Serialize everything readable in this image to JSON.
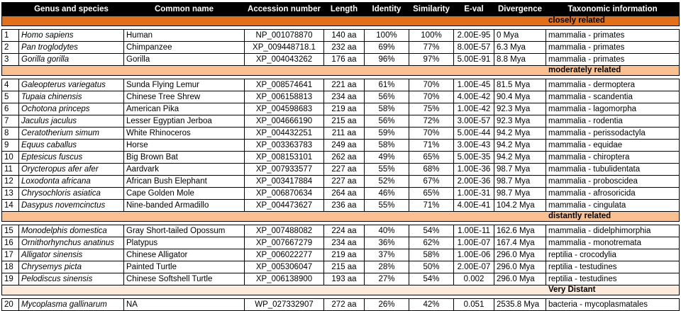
{
  "colors": {
    "header_bg": "#000000",
    "header_text": "#FFFFFF",
    "band_closely_related": "#E2701A",
    "band_moderately_related": "#FAC090",
    "band_distantly_related": "#FAC090",
    "band_very_distant": "#FDEADA",
    "row_bg": "#FFFFFF",
    "border": "#000000"
  },
  "table": {
    "columns": [
      {
        "key": "num",
        "label": ""
      },
      {
        "key": "genus",
        "label": "Genus and species"
      },
      {
        "key": "common",
        "label": "Common name"
      },
      {
        "key": "accession",
        "label": "Accession number"
      },
      {
        "key": "length",
        "label": "Length"
      },
      {
        "key": "identity",
        "label": "Identity"
      },
      {
        "key": "similarity",
        "label": "Similarity"
      },
      {
        "key": "eval",
        "label": "E-val"
      },
      {
        "key": "divergence",
        "label": "Divergence"
      },
      {
        "key": "taxonomy",
        "label": "Taxonomic information"
      }
    ],
    "sections": [
      {
        "label": "closely related",
        "band_color": "#E2701A",
        "rows": [
          {
            "num": "1",
            "genus": "Homo sapiens",
            "common": "Human",
            "accession": "NP_001078870",
            "length": "140 aa",
            "identity": "100%",
            "similarity": "100%",
            "eval": "2.00E-95",
            "divergence": "0 Mya",
            "taxonomy": "mammalia - primates"
          },
          {
            "num": "2",
            "genus": "Pan troglodytes",
            "common": "Chimpanzee",
            "accession": "XP_009448718.1",
            "length": "232 aa",
            "identity": "69%",
            "similarity": "77%",
            "eval": "8.00E-57",
            "divergence": "6.3 Mya",
            "taxonomy": "mammalia - primates"
          },
          {
            "num": "3",
            "genus": "Gorilla gorilla",
            "common": "Gorilla",
            "accession": "XP_004043262",
            "length": "176 aa",
            "identity": "96%",
            "similarity": "97%",
            "eval": "5.00E-91",
            "divergence": "8.8 Mya",
            "taxonomy": "mammalia - primates"
          }
        ]
      },
      {
        "label": "moderately related",
        "band_color": "#FAC090",
        "rows": [
          {
            "num": "4",
            "genus": "Galeopterus variegatus",
            "common": "Sunda Flying Lemur",
            "accession": "XP_008574641",
            "length": "221 aa",
            "identity": "61%",
            "similarity": "70%",
            "eval": "1.00E-45",
            "divergence": "81.5 Mya",
            "taxonomy": "mammalia - dermoptera"
          },
          {
            "num": "5",
            "genus": "Tupaia chinensis",
            "common": "Chinese Tree Shrew",
            "accession": "XP_006158813",
            "length": "234 aa",
            "identity": "56%",
            "similarity": "70%",
            "eval": "4.00E-42",
            "divergence": "90.4 Mya",
            "taxonomy": "mammalia - scandentia"
          },
          {
            "num": "6",
            "genus": "Ochotona princeps",
            "common": "American Pika",
            "accession": "XP_004598683",
            "length": "219 aa",
            "identity": "58%",
            "similarity": "75%",
            "eval": "1.00E-42",
            "divergence": "92.3 Mya",
            "taxonomy": "mammalia - lagomorpha"
          },
          {
            "num": "7",
            "genus": "Jaculus jaculus",
            "common": "Lesser Egyptian Jerboa",
            "accession": "XP_004666190",
            "length": "215 aa",
            "identity": "56%",
            "similarity": "72%",
            "eval": "3.00E-57",
            "divergence": "92.3 Mya",
            "taxonomy": "mammalia - rodentia"
          },
          {
            "num": "8",
            "genus": "Ceratotherium simum",
            "common": "White Rhinoceros",
            "accession": "XP_004432251",
            "length": "211 aa",
            "identity": "59%",
            "similarity": "70%",
            "eval": "5.00E-44",
            "divergence": "94.2 Mya",
            "taxonomy": "mammalia - perissodactyla"
          },
          {
            "num": "9",
            "genus": "Equus caballus",
            "common": "Horse",
            "accession": "XP_003363783",
            "length": "249 aa",
            "identity": "58%",
            "similarity": "71%",
            "eval": "3.00E-43",
            "divergence": "94.2 Mya",
            "taxonomy": "mammalia - equidae"
          },
          {
            "num": "10",
            "genus": "Eptesicus fuscus",
            "common": "Big Brown Bat",
            "accession": "XP_008153101",
            "length": "262 aa",
            "identity": "49%",
            "similarity": "65%",
            "eval": "5.00E-35",
            "divergence": "94.2 Mya",
            "taxonomy": "mammalia - chiroptera"
          },
          {
            "num": "11",
            "genus": "Orycteropus afer afer",
            "common": "Aardvark",
            "accession": "XP_007933577",
            "length": "227 aa",
            "identity": "55%",
            "similarity": "68%",
            "eval": "1.00E-36",
            "divergence": "98.7 Mya",
            "taxonomy": "mammalia - tubulidentata"
          },
          {
            "num": "12",
            "genus": "Loxodonta africana",
            "common": "African Bush Elephant",
            "accession": "XP_003417884",
            "length": "227 aa",
            "identity": "52%",
            "similarity": "67%",
            "eval": "2.00E-36",
            "divergence": "98.7 Mya",
            "taxonomy": "mammalia - proboscidea"
          },
          {
            "num": "13",
            "genus": "Chrysochloris asiatica",
            "common": "Cape Golden Mole",
            "accession": "XP_006870634",
            "length": "264 aa",
            "identity": "46%",
            "similarity": "65%",
            "eval": "1.00E-31",
            "divergence": "98.7 Mya",
            "taxonomy": "mammalia - afrosoricida"
          },
          {
            "num": "14",
            "genus": "Dasypus novemcinctus",
            "common": "Nine-banded Armadillo",
            "accession": "XP_004473627",
            "length": "236 aa",
            "identity": "55%",
            "similarity": "71%",
            "eval": "4.00E-41",
            "divergence": "104.2 Mya",
            "taxonomy": "mammalia - cingulata"
          }
        ]
      },
      {
        "label": "distantly related",
        "band_color": "#FAC090",
        "rows": [
          {
            "num": "15",
            "genus": "Monodelphis domestica",
            "common": "Gray Short-tailed Opossum",
            "accession": "XP_007488082",
            "length": "224 aa",
            "identity": "40%",
            "similarity": "54%",
            "eval": "1.00E-11",
            "divergence": "162.6 Mya",
            "taxonomy": "mammalia - didelphimorphia"
          },
          {
            "num": "16",
            "genus": "Ornithorhynchus anatinus",
            "common": "Platypus",
            "accession": "XP_007667279",
            "length": "234 aa",
            "identity": "36%",
            "similarity": "62%",
            "eval": "1.00E-07",
            "divergence": "167.4 Mya",
            "taxonomy": "mammalia - monotremata"
          },
          {
            "num": "17",
            "genus": "Alligator sinensis",
            "common": "Chinese Alligator",
            "accession": "XP_006022277",
            "length": "219 aa",
            "identity": "37%",
            "similarity": "58%",
            "eval": "1.00E-06",
            "divergence": "296.0 Mya",
            "taxonomy": "reptilia - crocodylia"
          },
          {
            "num": "18",
            "genus": "Chrysemys picta",
            "common": "Painted Turtle",
            "accession": "XP_005306047",
            "length": "215 aa",
            "identity": "28%",
            "similarity": "50%",
            "eval": "2.00E-07",
            "divergence": "296.0 Mya",
            "taxonomy": "reptilia - testudines"
          },
          {
            "num": "19",
            "genus": "Pelodiscus sinensis",
            "common": "Chinese Softshell Turtle",
            "accession": "XP_006138900",
            "length": "193 aa",
            "identity": "27%",
            "similarity": "54%",
            "eval": "0.002",
            "divergence": "296.0 Mya",
            "taxonomy": "reptilia - testudines"
          }
        ]
      },
      {
        "label": "Very Distant",
        "band_color": "#FDEADA",
        "rows": [
          {
            "num": "20",
            "genus": "Mycoplasma gallinarum",
            "common": "NA",
            "accession": "WP_027332907",
            "length": "272 aa",
            "identity": "26%",
            "similarity": "42%",
            "eval": "0.051",
            "divergence": "2535.8 Mya",
            "taxonomy": "bacteria - mycoplasmatales"
          }
        ]
      }
    ]
  }
}
